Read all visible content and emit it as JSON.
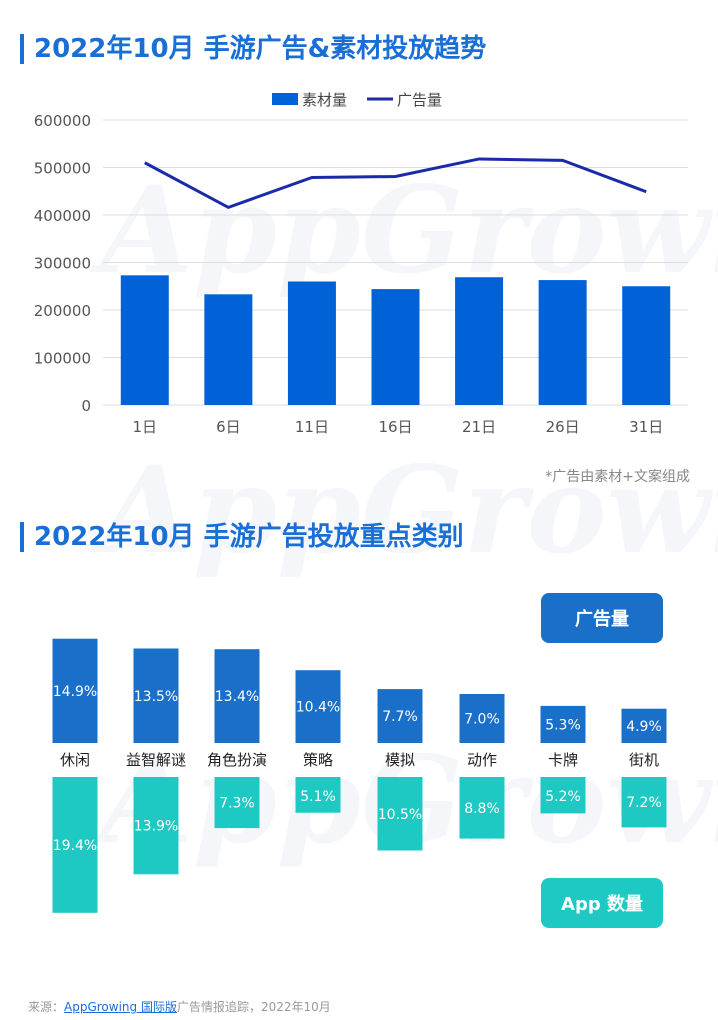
{
  "chart_data": [
    {
      "type": "bar+line",
      "title": "2022年10月 手游广告&素材投放趋势",
      "categories": [
        "1日",
        "6日",
        "11日",
        "16日",
        "21日",
        "26日",
        "31日"
      ],
      "series": [
        {
          "name": "素材量",
          "type": "bar",
          "color": "#0062d6",
          "values": [
            273000,
            233000,
            260000,
            244000,
            269000,
            263000,
            250000
          ]
        },
        {
          "name": "广告量",
          "type": "line",
          "color": "#1a2aa8",
          "values": [
            510000,
            416000,
            479000,
            481000,
            518000,
            515000,
            449000
          ]
        }
      ],
      "ylim": [
        0,
        600000
      ],
      "yticks": [
        "0",
        "100000",
        "200000",
        "300000",
        "400000",
        "500000",
        "600000"
      ],
      "grid": true,
      "legend": "top-center",
      "note": "*广告由素材+文案组成"
    },
    {
      "type": "bar",
      "title": "2022年10月 手游广告投放重点类别",
      "categories": [
        "休闲",
        "益智解谜",
        "角色扮演",
        "策略",
        "模拟",
        "动作",
        "卡牌",
        "街机"
      ],
      "series": [
        {
          "name": "广告量",
          "color": "#1a6fc8",
          "values": [
            14.9,
            13.5,
            13.4,
            10.4,
            7.7,
            7.0,
            5.3,
            4.9
          ],
          "labels": [
            "14.9%",
            "13.5%",
            "13.4%",
            "10.4%",
            "7.7%",
            "7.0%",
            "5.3%",
            "4.9%"
          ]
        },
        {
          "name": "App 数量",
          "color": "#1ec9c4",
          "values": [
            19.4,
            13.9,
            7.3,
            5.1,
            10.5,
            8.8,
            5.2,
            7.2
          ],
          "labels": [
            "19.4%",
            "13.9%",
            "7.3%",
            "5.1%",
            "10.5%",
            "8.8%",
            "5.2%",
            "7.2%"
          ]
        }
      ]
    }
  ],
  "watermark": "AppGrowing",
  "footer": {
    "prefix": "来源：",
    "link": "AppGrowing 国际版",
    "suffix": "广告情报追踪，2022年10月"
  }
}
